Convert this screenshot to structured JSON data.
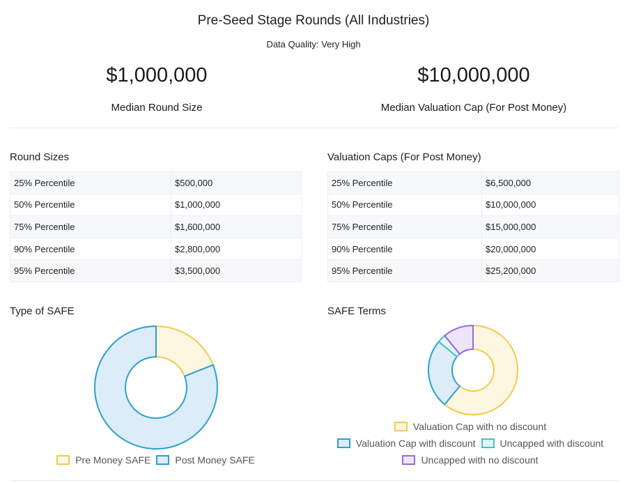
{
  "header": {
    "title": "Pre-Seed Stage Rounds (All Industries)",
    "subtitle": "Data Quality: Very High"
  },
  "kpis": {
    "round_size": {
      "value": "$1,000,000",
      "label": "Median Round Size"
    },
    "valuation_cap": {
      "value": "$10,000,000",
      "label": "Median Valuation Cap (For Post Money)"
    }
  },
  "round_sizes": {
    "title": "Round Sizes",
    "rows": [
      {
        "label": "25% Percentile",
        "value": "$500,000"
      },
      {
        "label": "50% Percentile",
        "value": "$1,000,000"
      },
      {
        "label": "75% Percentile",
        "value": "$1,600,000"
      },
      {
        "label": "90% Percentile",
        "value": "$2,800,000"
      },
      {
        "label": "95% Percentile",
        "value": "$3,500,000"
      }
    ]
  },
  "valuation_caps": {
    "title": "Valuation Caps (For Post Money)",
    "rows": [
      {
        "label": "25% Percentile",
        "value": "$6,500,000"
      },
      {
        "label": "50% Percentile",
        "value": "$10,000,000"
      },
      {
        "label": "75% Percentile",
        "value": "$15,000,000"
      },
      {
        "label": "90% Percentile",
        "value": "$20,000,000"
      },
      {
        "label": "95% Percentile",
        "value": "$25,200,000"
      }
    ]
  },
  "chart_data": [
    {
      "type": "pie",
      "title": "Type of SAFE",
      "legend": "bottom",
      "categories": [
        "Pre Money SAFE",
        "Post Money SAFE"
      ],
      "values": [
        19,
        81
      ],
      "colors": [
        {
          "fill": "#fdf6e0",
          "stroke": "#f2c94c"
        },
        {
          "fill": "#dcecf9",
          "stroke": "#2d9fd0"
        }
      ]
    },
    {
      "type": "pie",
      "title": "SAFE Terms",
      "legend": "bottom",
      "categories": [
        "Valuation Cap with no discount",
        "Valuation Cap with discount",
        "Uncapped with discount",
        "Uncapped with no discount"
      ],
      "values": [
        61,
        25,
        3,
        11
      ],
      "colors": [
        {
          "fill": "#fdf6e0",
          "stroke": "#f2c94c"
        },
        {
          "fill": "#dcecf9",
          "stroke": "#2d9fd0"
        },
        {
          "fill": "#e0f4f4",
          "stroke": "#4cc0c0"
        },
        {
          "fill": "#efe5fb",
          "stroke": "#9966e0"
        }
      ]
    }
  ]
}
